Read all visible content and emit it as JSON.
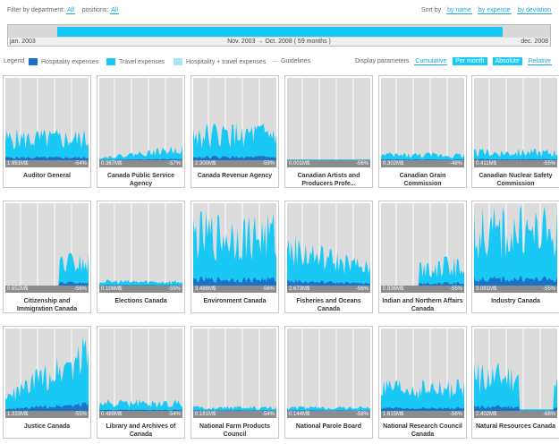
{
  "filter": {
    "dept_label": "Filter by department:",
    "dept_value": "All",
    "pos_label": "positions:",
    "pos_value": "All"
  },
  "sort": {
    "label": "Sort by",
    "options": [
      "by name",
      "by expense",
      "by deviation"
    ]
  },
  "timeline": {
    "start": "jan. 2003",
    "end": "dec. 2008",
    "range": "Nov. 2003 → Oct. 2008 ( 59 months )"
  },
  "legend": {
    "label": "Legend",
    "items": [
      {
        "label": "Hospitality expenses",
        "color": "#1a73c8"
      },
      {
        "label": "Travel expenses",
        "color": "#1ac8f5"
      },
      {
        "label": "Hospitality + travel expenses",
        "color": "#a8e6f7"
      },
      {
        "label": "Guidelines",
        "color": "#aaaaaa"
      }
    ]
  },
  "params": {
    "label": "Display parameters",
    "options": [
      {
        "label": "Cumulative",
        "active": false
      },
      {
        "label": "Per month",
        "active": true
      },
      {
        "label": "Absolute",
        "active": true
      },
      {
        "label": "Relative",
        "active": false
      }
    ]
  },
  "departments": [
    {
      "name": "Auditor General",
      "amount": "1.951M$",
      "pct": "-54%",
      "shape": "spiky",
      "level": 0.3,
      "onset": 0
    },
    {
      "name": "Canada Public Service Agency",
      "amount": "0.367M$",
      "pct": "-57%",
      "shape": "rising",
      "level": 0.15,
      "onset": 0
    },
    {
      "name": "Canada Revenue Agency",
      "amount": "2.300M$",
      "pct": "-59%",
      "shape": "spiky",
      "level": 0.35,
      "onset": 0
    },
    {
      "name": "Canadian Artists and Producers Profe...",
      "amount": "0.001M$",
      "pct": "-56%",
      "shape": "flat",
      "level": 0.01,
      "onset": 0
    },
    {
      "name": "Canadian Grain Commission",
      "amount": "0.302M$",
      "pct": "-48%",
      "shape": "low",
      "level": 0.08,
      "onset": 0
    },
    {
      "name": "Canadian Nuclear Safety Commission",
      "amount": "0.411M$",
      "pct": "-55%",
      "shape": "low",
      "level": 0.12,
      "onset": 0
    },
    {
      "name": "Citizenship and Immigration Canada",
      "amount": "0.652M$",
      "pct": "-56%",
      "shape": "late",
      "level": 0.35,
      "onset": 0.65
    },
    {
      "name": "Elections Canada",
      "amount": "0.108M$",
      "pct": "-55%",
      "shape": "low",
      "level": 0.06,
      "onset": 0
    },
    {
      "name": "Environment Canada",
      "amount": "3.488M$",
      "pct": "-56%",
      "shape": "spiky",
      "level": 0.7,
      "onset": 0
    },
    {
      "name": "Fisheries and Oceans Canada",
      "amount": "2.673M$",
      "pct": "-56%",
      "shape": "decay",
      "level": 0.5,
      "onset": 0
    },
    {
      "name": "Indian and Northern Affairs Canada",
      "amount": "0.836M$",
      "pct": "-55%",
      "shape": "late",
      "level": 0.3,
      "onset": 0.45
    },
    {
      "name": "Industry Canada",
      "amount": "3.081M$",
      "pct": "-55%",
      "shape": "spiky",
      "level": 0.75,
      "onset": 0
    },
    {
      "name": "Justice Canada",
      "amount": "1.333M$",
      "pct": "-55%",
      "shape": "rising",
      "level": 0.8,
      "onset": 0
    },
    {
      "name": "Library and Archives of Canada",
      "amount": "0.489M$",
      "pct": "-54%",
      "shape": "low",
      "level": 0.12,
      "onset": 0
    },
    {
      "name": "National Farm Products Council",
      "amount": "0.181M$",
      "pct": "-54%",
      "shape": "low",
      "level": 0.05,
      "onset": 0
    },
    {
      "name": "National Parole Board",
      "amount": "0.144M$",
      "pct": "-58%",
      "shape": "low",
      "level": 0.05,
      "onset": 0
    },
    {
      "name": "National Research Council Canada",
      "amount": "1.615M$",
      "pct": "-56%",
      "shape": "spiky",
      "level": 0.3,
      "onset": 0
    },
    {
      "name": "Natural Resources Canada",
      "amount": "2.402M$",
      "pct": "-68%",
      "shape": "gap",
      "level": 0.5,
      "onset": 0
    }
  ]
}
